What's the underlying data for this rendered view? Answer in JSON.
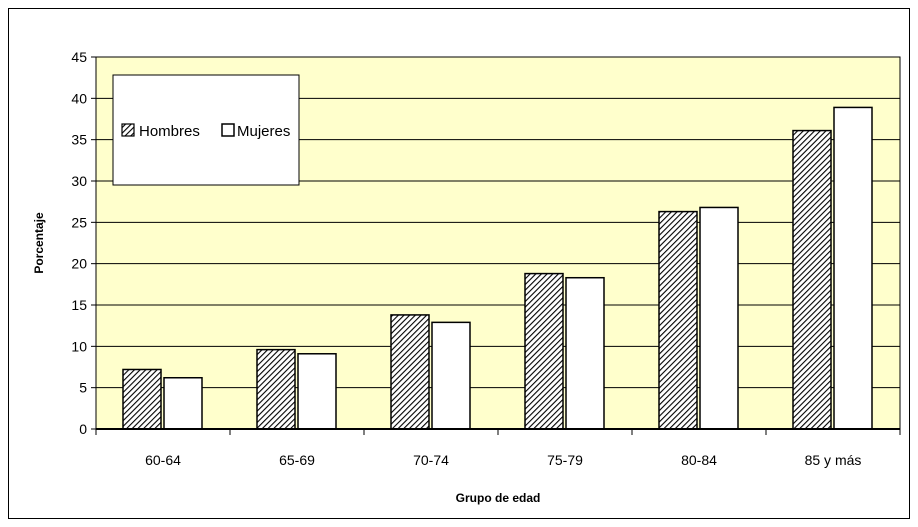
{
  "chart_data": {
    "type": "bar",
    "title": "",
    "xlabel": "Grupo de edad",
    "ylabel": "Porcentaje",
    "categories": [
      "60-64",
      "65-69",
      "70-74",
      "75-79",
      "80-84",
      "85 y más"
    ],
    "series": [
      {
        "name": "Hombres",
        "values": [
          7.2,
          9.6,
          13.8,
          18.8,
          26.3,
          36.1
        ],
        "fill": "hatched",
        "color": "#ffffff",
        "pattern_color": "#000000"
      },
      {
        "name": "Mujeres",
        "values": [
          6.2,
          9.1,
          12.9,
          18.3,
          26.8,
          38.9
        ],
        "fill": "solid",
        "color": "#ffffff"
      }
    ],
    "ylim": [
      0,
      45
    ],
    "yticks": [
      0,
      5,
      10,
      15,
      20,
      25,
      30,
      35,
      40,
      45
    ],
    "grid": true,
    "legend_position": "top-left",
    "plot_background": "#ffffcc",
    "border_color": "#000000"
  }
}
